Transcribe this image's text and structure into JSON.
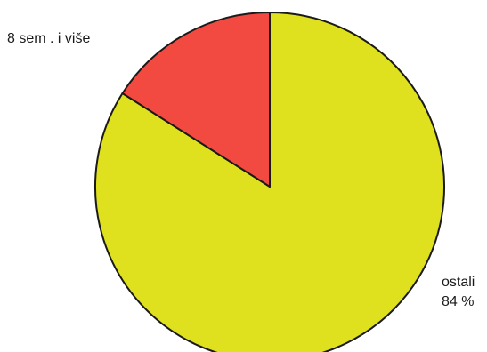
{
  "chart_data": {
    "type": "pie",
    "slices": [
      {
        "label": "ostali",
        "value": 84,
        "value_label": "84 %",
        "color": "#dfe11f"
      },
      {
        "label": "8 sem . i više",
        "value": 16,
        "value_label": "",
        "color": "#f24a40"
      }
    ],
    "start": "12 o'clock",
    "direction": "clockwise",
    "stroke_color": "#1a1a1a"
  }
}
